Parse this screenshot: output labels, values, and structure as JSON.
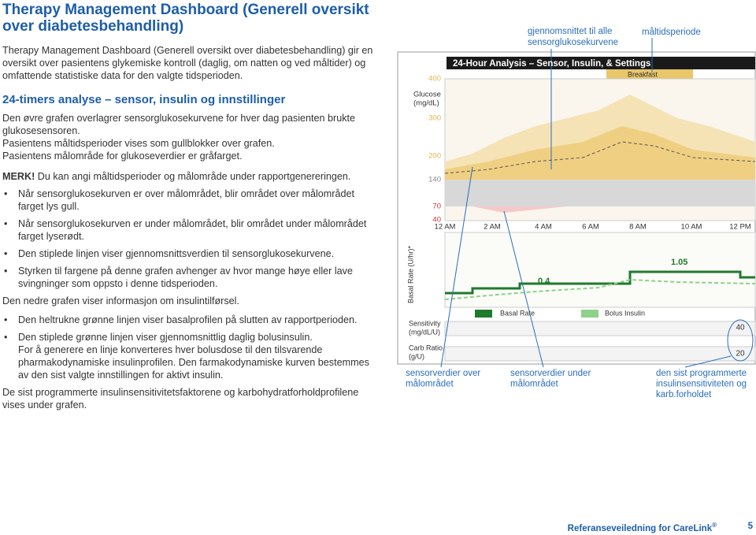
{
  "header": {
    "title": "Therapy Management Dashboard (Generell oversikt over diabetesbehandling)"
  },
  "intro": "Therapy Management Dashboard (Generell oversikt over diabetesbehandling) gir en oversikt over pasientens glykemiske kontroll (daglig, om natten og ved måltider) og omfattende statistiske data for den valgte tidsperioden.",
  "section": {
    "heading": "24-timers analyse – sensor, insulin og innstillinger",
    "lines": [
      "Den øvre grafen overlagrer sensorglukosekurvene for hver dag pasienten brukte glukosesensoren.",
      "Pasientens måltidsperioder vises som gullblokker over grafen.",
      "Pasientens målområde for glukoseverdier er gråfarget."
    ]
  },
  "note": {
    "label": "MERK!",
    "text": "Du kan angi måltidsperioder og målområde under rapportgenereringen."
  },
  "bullets_sensor": [
    "Når sensorglukosekurven er over målområdet, blir området over målområdet farget lys gull.",
    "Når sensorglukosekurven er under målområdet, blir området under målområdet farget lyserødt.",
    "Den stiplede linjen viser gjennomsnittsverdien til sensorglukosekurvene.",
    "Styrken til fargene på denne grafen avhenger av hvor mange høye eller lave svingninger som oppsto i denne tidsperioden."
  ],
  "insulin_intro": "Den nedre grafen viser informasjon om insulintilførsel.",
  "bullets_insulin": [
    {
      "lines": [
        "Den heltrukne grønne linjen viser basalprofilen på slutten av rapportperioden."
      ]
    },
    {
      "lines": [
        "Den stiplede grønne linjen viser gjennomsnittlig daglig bolusinsulin.",
        "For å generere en linje konverteres hver bolusdose til den tilsvarende pharmakodynamiske insulinprofilen. Den farmakodynamiske kurven bestemmes av den sist valgte innstillingen for aktivt insulin."
      ]
    }
  ],
  "settings_text": "De sist programmerte insulinsensitivitetsfaktorene og karbohydratforholdprofilene vises under grafen.",
  "figure": {
    "callouts_top": [
      [
        "gjennomsnittet til alle",
        "sensorglukosekurvene"
      ],
      [
        "måltidsperiode"
      ]
    ],
    "callouts_bottom": [
      [
        "sensorverdier over",
        "målområdet"
      ],
      [
        "sensorverdier under",
        "målområdet"
      ],
      [
        "den sist programmerte",
        "insulinsensitiviteten og",
        "karb.forholdet"
      ]
    ],
    "screenshot": {
      "title": "24-Hour Analysis – Sensor, Insulin, & Settings",
      "meal": "Breakfast",
      "glucose_label": [
        "Glucose",
        "(mg/dL)"
      ],
      "glucose_ticks": [
        "400",
        "300",
        "200",
        "140",
        "70",
        "40"
      ],
      "time_labels": [
        "12 AM",
        "2 AM",
        "4 AM",
        "6 AM",
        "8 AM",
        "10 AM",
        "12 PM"
      ],
      "basal_axis": "Basal Rate (U/hr)*",
      "basal_values": [
        "1.05",
        "0.4"
      ],
      "legend": [
        "Basal Rate",
        "Bolus Insulin"
      ],
      "sensitivity_label": [
        "Sensitivity",
        "(mg/dL/U)"
      ],
      "carb_label": [
        "Carb Ratio",
        "(g/U)"
      ],
      "sensitivity_value": "40",
      "carb_value": "20"
    }
  },
  "footer": {
    "text": "Referanseveiledning for CareLink",
    "mark": "®",
    "page": "5"
  }
}
